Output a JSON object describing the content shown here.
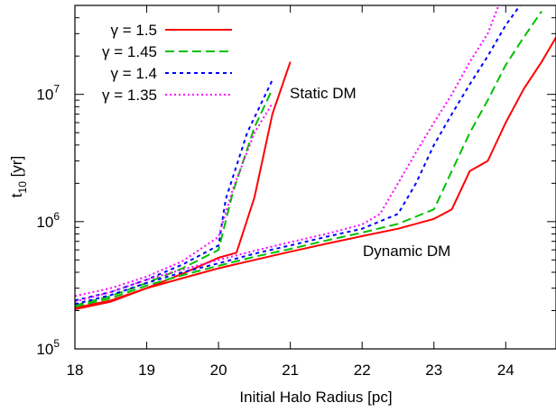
{
  "chart_data": {
    "type": "line",
    "xlabel": "Initial Halo Radius [pc]",
    "ylabel": {
      "base": "t",
      "sub": "10",
      "unit": " [yr]"
    },
    "xlim": [
      18,
      24.7
    ],
    "ylim": [
      100000,
      50000000
    ],
    "yscale": "log",
    "grid": false,
    "legend_position": "top-left",
    "x_ticks": [
      {
        "value": 18,
        "label": "18"
      },
      {
        "value": 19,
        "label": "19"
      },
      {
        "value": 20,
        "label": "20"
      },
      {
        "value": 21,
        "label": "21"
      },
      {
        "value": 22,
        "label": "22"
      },
      {
        "value": 23,
        "label": "23"
      },
      {
        "value": 24,
        "label": "24"
      }
    ],
    "y_ticks": [
      {
        "value": 100000,
        "base": "10",
        "exp": "5"
      },
      {
        "value": 1000000,
        "base": "10",
        "exp": "6"
      },
      {
        "value": 10000000,
        "base": "10",
        "exp": "7"
      }
    ],
    "annotations": [
      {
        "text": "Static DM",
        "x": 21.0,
        "y": 11000000
      },
      {
        "text": "Dynamic DM",
        "x": 22.0,
        "y": 580000
      }
    ],
    "series": [
      {
        "name": "γ = 1.5",
        "color": "#ff0000",
        "dash": "solid",
        "static": [
          [
            18,
            210000
          ],
          [
            18.5,
            240000
          ],
          [
            19,
            300000
          ],
          [
            19.5,
            390000
          ],
          [
            20,
            520000
          ],
          [
            20.25,
            570000
          ],
          [
            20.5,
            1550000
          ],
          [
            20.75,
            7000000
          ],
          [
            21.0,
            18000000
          ]
        ],
        "dynamic": [
          [
            18,
            205000
          ],
          [
            18.5,
            235000
          ],
          [
            19,
            300000
          ],
          [
            19.5,
            360000
          ],
          [
            20,
            430000
          ],
          [
            20.5,
            500000
          ],
          [
            21,
            580000
          ],
          [
            21.5,
            670000
          ],
          [
            22,
            770000
          ],
          [
            22.5,
            880000
          ],
          [
            23,
            1050000
          ],
          [
            23.25,
            1250000
          ],
          [
            23.5,
            2500000
          ],
          [
            23.75,
            3000000
          ],
          [
            24,
            6000000
          ],
          [
            24.25,
            11000000
          ],
          [
            24.5,
            18000000
          ],
          [
            24.7,
            28000000
          ]
        ]
      },
      {
        "name": "γ = 1.45",
        "color": "#00c000",
        "dash": "10,5",
        "static": [
          [
            18,
            220000
          ],
          [
            18.5,
            260000
          ],
          [
            19,
            330000
          ],
          [
            19.5,
            430000
          ],
          [
            20,
            600000
          ],
          [
            20.2,
            1700000
          ],
          [
            20.5,
            5500000
          ],
          [
            20.75,
            11000000
          ]
        ],
        "dynamic": [
          [
            18,
            215000
          ],
          [
            18.5,
            250000
          ],
          [
            19,
            315000
          ],
          [
            19.5,
            380000
          ],
          [
            20,
            450000
          ],
          [
            20.5,
            530000
          ],
          [
            21,
            610000
          ],
          [
            21.5,
            710000
          ],
          [
            22,
            820000
          ],
          [
            22.5,
            960000
          ],
          [
            23,
            1250000
          ],
          [
            23.25,
            2500000
          ],
          [
            23.5,
            5000000
          ],
          [
            23.75,
            9000000
          ],
          [
            24,
            17000000
          ],
          [
            24.25,
            28000000
          ],
          [
            24.5,
            45000000
          ]
        ]
      },
      {
        "name": "γ = 1.4",
        "color": "#0000ff",
        "dash": "4,4",
        "static": [
          [
            18,
            240000
          ],
          [
            18.5,
            280000
          ],
          [
            19,
            350000
          ],
          [
            19.5,
            460000
          ],
          [
            20,
            650000
          ],
          [
            20.1,
            1500000
          ],
          [
            20.4,
            5000000
          ],
          [
            20.75,
            13000000
          ]
        ],
        "dynamic": [
          [
            18,
            225000
          ],
          [
            18.5,
            265000
          ],
          [
            19,
            330000
          ],
          [
            19.5,
            400000
          ],
          [
            20,
            470000
          ],
          [
            20.5,
            560000
          ],
          [
            21,
            650000
          ],
          [
            21.5,
            760000
          ],
          [
            22,
            880000
          ],
          [
            22.5,
            1150000
          ],
          [
            22.75,
            2000000
          ],
          [
            23,
            4000000
          ],
          [
            23.25,
            7000000
          ],
          [
            23.5,
            12000000
          ],
          [
            23.75,
            20000000
          ],
          [
            24,
            35000000
          ],
          [
            24.2,
            50000000
          ]
        ]
      },
      {
        "name": "γ = 1.35",
        "color": "#ff00ff",
        "dash": "2,3",
        "static": [
          [
            18,
            260000
          ],
          [
            18.5,
            300000
          ],
          [
            19,
            370000
          ],
          [
            19.5,
            490000
          ],
          [
            20,
            760000
          ],
          [
            20.2,
            1800000
          ],
          [
            20.5,
            5000000
          ],
          [
            20.75,
            8500000
          ]
        ],
        "dynamic": [
          [
            18,
            235000
          ],
          [
            18.5,
            280000
          ],
          [
            19,
            350000
          ],
          [
            19.5,
            420000
          ],
          [
            20,
            500000
          ],
          [
            20.5,
            590000
          ],
          [
            21,
            690000
          ],
          [
            21.5,
            800000
          ],
          [
            22,
            950000
          ],
          [
            22.25,
            1150000
          ],
          [
            22.5,
            2000000
          ],
          [
            22.75,
            3500000
          ],
          [
            23,
            6000000
          ],
          [
            23.25,
            10000000
          ],
          [
            23.5,
            18000000
          ],
          [
            23.75,
            30000000
          ],
          [
            23.9,
            50000000
          ]
        ]
      }
    ]
  }
}
